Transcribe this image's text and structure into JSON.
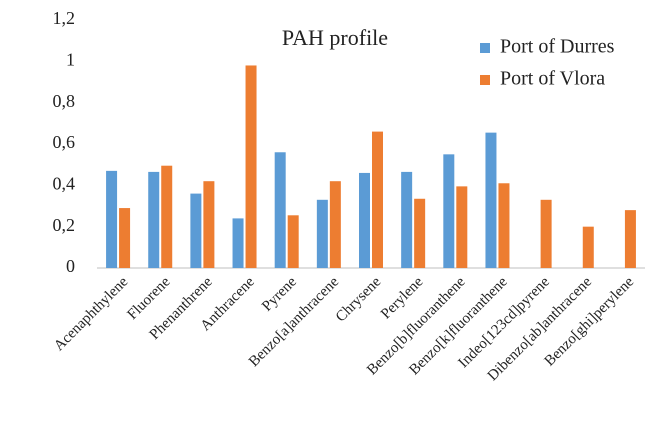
{
  "chart_data": {
    "type": "bar",
    "title": "PAH profile",
    "categories": [
      "Acenaphthylene",
      "Fluorene",
      "Phenanthrene",
      "Anthracene",
      "Pyrene",
      "Benzo[a]anthracene",
      "Chrysene",
      "Perylene",
      "Benzo[b]fluoranthene",
      "Benzo[k]fluoranthene",
      "Indeo[123cd]pyrene",
      "Dibenzo[ab]anthracene",
      "Benzo[ghi]perylene"
    ],
    "series": [
      {
        "name": "Port of Durres",
        "color": "#5b9bd5",
        "values": [
          0.47,
          0.465,
          0.36,
          0.24,
          0.56,
          0.33,
          0.46,
          0.465,
          0.55,
          0.655,
          null,
          null,
          null
        ]
      },
      {
        "name": "Port of Vlora",
        "color": "#ed7d31",
        "values": [
          0.29,
          0.495,
          0.42,
          0.98,
          0.255,
          0.42,
          0.66,
          0.335,
          0.395,
          0.41,
          0.33,
          0.2,
          0.28
        ]
      }
    ],
    "ylim": [
      0,
      1.2
    ],
    "yticks": [
      0,
      {
        "value": 0.2,
        "label": "0,2"
      },
      {
        "value": 0.4,
        "label": "0,4"
      },
      {
        "value": 0.6,
        "label": "0,6"
      },
      {
        "value": 0.8,
        "label": "0,8"
      },
      1,
      {
        "value": 1.2,
        "label": "1,2"
      }
    ],
    "grid": false,
    "legend": "top-right"
  }
}
